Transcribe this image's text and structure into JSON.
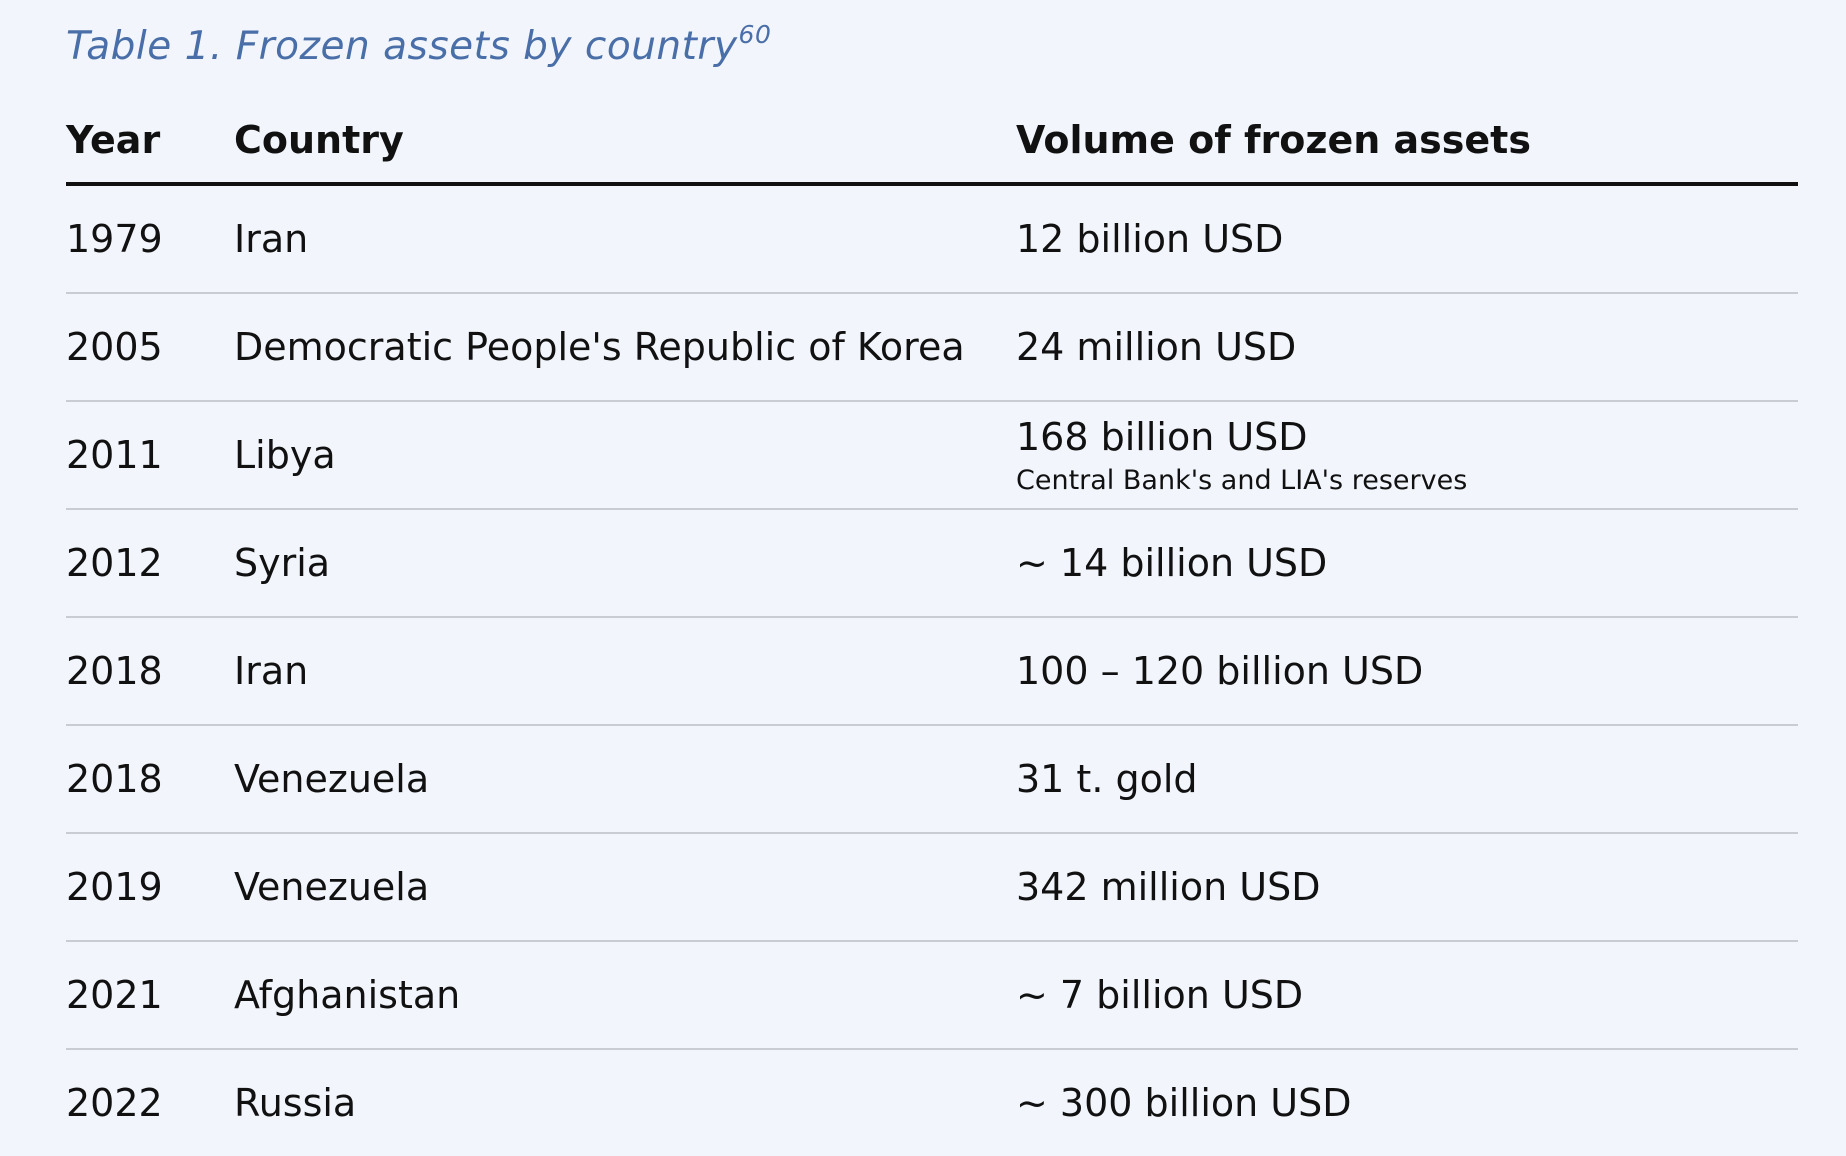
{
  "caption": {
    "text": "Table 1. Frozen assets by country",
    "footnote": "60"
  },
  "table": {
    "headers": {
      "year": "Year",
      "country": "Country",
      "volume": "Volume of frozen assets"
    },
    "rows": [
      {
        "year": "1979",
        "country": "Iran",
        "volume": "12 billion USD",
        "note": ""
      },
      {
        "year": "2005",
        "country": "Democratic People's Republic of Korea",
        "volume": "24 million USD",
        "note": ""
      },
      {
        "year": "2011",
        "country": "Libya",
        "volume": "168 billion USD",
        "note": "Central Bank's and LIA's reserves"
      },
      {
        "year": "2012",
        "country": "Syria",
        "volume": "~ 14 billion USD",
        "note": ""
      },
      {
        "year": "2018",
        "country": "Iran",
        "volume": "100 – 120 billion USD",
        "note": ""
      },
      {
        "year": "2018",
        "country": "Venezuela",
        "volume": "31 t. gold",
        "note": ""
      },
      {
        "year": "2019",
        "country": "Venezuela",
        "volume": "342 million USD",
        "note": ""
      },
      {
        "year": "2021",
        "country": "Afghanistan",
        "volume": "~ 7 billion USD",
        "note": ""
      },
      {
        "year": "2022",
        "country": "Russia",
        "volume": "~ 300 billion USD",
        "note": ""
      }
    ]
  },
  "colors": {
    "background": "#f2f6fc",
    "caption": "#4a6fa8",
    "text": "#111111",
    "rule": "#c9ccd2"
  }
}
